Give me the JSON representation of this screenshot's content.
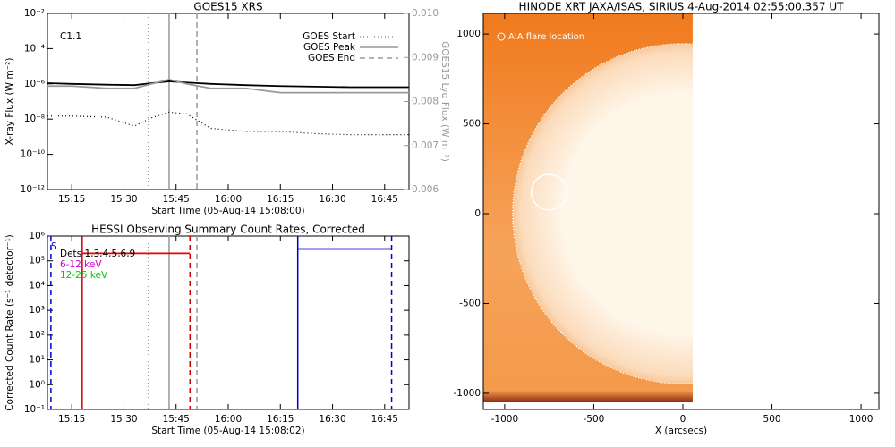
{
  "chart_data": [
    {
      "type": "line",
      "title": "GOES15 XRS",
      "log_y": true,
      "xlabel": "Start Time (05-Aug-14 15:08:00)",
      "ylabel": "X-ray Flux (W m⁻²)",
      "y2label": "GOES15 Lyα Flux (W m⁻²)",
      "annotation": "C1.1",
      "xlim": [
        "15:08",
        "16:52"
      ],
      "xticks": [
        "15:15",
        "15:30",
        "15:45",
        "16:00",
        "16:15",
        "16:30",
        "16:45"
      ],
      "ylim": [
        1e-12,
        0.01
      ],
      "yticks": [
        {
          "value": 1e-12,
          "label": "10⁻¹²"
        },
        {
          "value": 1e-10,
          "label": "10⁻¹⁰"
        },
        {
          "value": 1e-08,
          "label": "10⁻⁸"
        },
        {
          "value": 1e-06,
          "label": "10⁻⁶"
        },
        {
          "value": 0.0001,
          "label": "10⁻⁴"
        },
        {
          "value": 0.01,
          "label": "10⁻²"
        }
      ],
      "y2lim": [
        0.006,
        0.01
      ],
      "y2ticks": [
        0.006,
        0.007,
        0.008,
        0.009,
        {
          "value": 0.01,
          "label": "0.010"
        }
      ],
      "y2color": "#999999",
      "series": [
        {
          "color": "#000000",
          "style": "solid",
          "x": [
            "15:08",
            "15:15",
            "15:25",
            "15:33",
            "15:38",
            "15:43",
            "15:48",
            "15:55",
            "16:05",
            "16:15",
            "16:25",
            "16:35",
            "16:45",
            "16:52"
          ],
          "values": [
            1.1e-06,
            1e-06,
            9e-07,
            8.5e-07,
            1.1e-06,
            1.4e-06,
            1.2e-06,
            1e-06,
            8.5e-07,
            7.5e-07,
            7e-07,
            6.5e-07,
            6.5e-07,
            6.5e-07
          ]
        },
        {
          "color": "#000000",
          "style": "dotted",
          "x": [
            "15:08",
            "15:15",
            "15:25",
            "15:33",
            "15:38",
            "15:43",
            "15:48",
            "15:55",
            "16:05",
            "16:15",
            "16:25",
            "16:35",
            "16:45",
            "16:52"
          ],
          "values": [
            1.5e-08,
            1.5e-08,
            1.3e-08,
            4e-09,
            1.2e-08,
            2.5e-08,
            2e-08,
            3e-09,
            2e-09,
            2e-09,
            1.5e-09,
            1.3e-09,
            1.3e-09,
            1.3e-09
          ]
        },
        {
          "color": "#999999",
          "style": "solid",
          "axis": "y2",
          "x": [
            "15:08",
            "15:15",
            "15:25",
            "15:33",
            "15:38",
            "15:43",
            "15:48",
            "15:55",
            "16:05",
            "16:15",
            "16:25",
            "16:35",
            "16:45",
            "16:52"
          ],
          "values": [
            0.00835,
            0.00835,
            0.0083,
            0.0083,
            0.0084,
            0.0085,
            0.0084,
            0.0083,
            0.0083,
            0.0082,
            0.0082,
            0.0082,
            0.0082,
            0.0082
          ]
        }
      ],
      "vlines": [
        {
          "name": "GOES Start",
          "x": "15:37",
          "color": "#999999",
          "style": "dotted"
        },
        {
          "name": "GOES Peak",
          "x": "15:43",
          "color": "#999999",
          "style": "solid"
        },
        {
          "name": "GOES End",
          "x": "15:51",
          "color": "#999999",
          "style": "dashed"
        }
      ]
    },
    {
      "type": "line",
      "title": "HESSI Observing Summary Count Rates, Corrected",
      "log_y": true,
      "xlabel": "Start Time (05-Aug-14 15:08:02)",
      "ylabel": "Corrected Count Rate (s⁻¹ detector⁻¹)",
      "xlim": [
        "15:08",
        "16:52"
      ],
      "xticks": [
        "15:15",
        "15:30",
        "15:45",
        "16:00",
        "16:15",
        "16:30",
        "16:45"
      ],
      "ylim": [
        0.1,
        1000000.0
      ],
      "yticks": [
        {
          "value": 0.1,
          "label": "10⁻¹"
        },
        {
          "value": 1,
          "label": "10⁰"
        },
        {
          "value": 10,
          "label": "10¹"
        },
        {
          "value": 100,
          "label": "10²"
        },
        {
          "value": 1000,
          "label": "10³"
        },
        {
          "value": 10000,
          "label": "10⁴"
        },
        {
          "value": 100000,
          "label": "10⁵"
        },
        {
          "value": 1000000,
          "label": "10⁶"
        }
      ],
      "labels": [
        {
          "text": "S",
          "color": "#0000cc"
        },
        {
          "text": "Dets 1,3,4,5,6,9",
          "color": "#000000"
        },
        {
          "text": "6-12 keV",
          "color": "#cc00cc"
        },
        {
          "text": "12-25 keV",
          "color": "#00cc00"
        }
      ],
      "series": [
        {
          "color": "#ee0000",
          "style": "solid",
          "x": [
            "15:18",
            "15:49"
          ],
          "values": [
            200000,
            200000
          ]
        },
        {
          "color": "#0000cc",
          "style": "solid",
          "x": [
            "16:20",
            "16:47"
          ],
          "values": [
            300000,
            300000
          ]
        },
        {
          "color": "#00cc00",
          "style": "solid",
          "x": [
            "15:08",
            "16:52"
          ],
          "values": [
            0.1,
            0.1
          ]
        }
      ],
      "vlines": [
        {
          "x": "15:09",
          "color": "#0000cc",
          "style": "dashed"
        },
        {
          "x": "15:18",
          "color": "#cc0000",
          "style": "solid"
        },
        {
          "x": "15:37",
          "color": "#999999",
          "style": "dotted"
        },
        {
          "x": "15:43",
          "color": "#999999",
          "style": "solid"
        },
        {
          "x": "15:49",
          "color": "#cc0000",
          "style": "dashed"
        },
        {
          "x": "15:51",
          "color": "#999999",
          "style": "dashed"
        },
        {
          "x": "16:20",
          "color": "#0000cc",
          "style": "solid"
        },
        {
          "x": "16:47",
          "color": "#0000cc",
          "style": "dashed"
        }
      ]
    },
    {
      "type": "image",
      "title": "HINODE XRT JAXA/ISAS, SIRIUS  4-Aug-2014 02:55:00.357 UT",
      "xlabel": "X (arcsecs)",
      "annotation": "AIA flare location",
      "xlim": [
        -1120,
        1100
      ],
      "xticks": [
        -1000,
        -500,
        0,
        500,
        1000
      ],
      "ylim": [
        -1090,
        1115
      ],
      "yticks": [
        -1000,
        -500,
        0,
        500,
        1000
      ],
      "image_extent": {
        "x": [
          -1120,
          55
        ],
        "y": [
          -1050,
          1115
        ]
      },
      "disk_radius": 955,
      "flare": {
        "x": -750,
        "y": 120,
        "r": 100
      }
    }
  ]
}
